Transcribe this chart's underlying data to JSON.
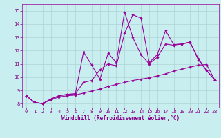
{
  "xlabel": "Windchill (Refroidissement éolien,°C)",
  "background_color": "#c8eef0",
  "grid_color": "#aed4d6",
  "line_color": "#990099",
  "xlim": [
    -0.5,
    23.5
  ],
  "ylim": [
    7.7,
    15.5
  ],
  "xticks": [
    0,
    1,
    2,
    3,
    4,
    5,
    6,
    7,
    8,
    9,
    10,
    11,
    12,
    13,
    14,
    15,
    16,
    17,
    18,
    19,
    20,
    21,
    22,
    23
  ],
  "yticks": [
    8,
    9,
    10,
    11,
    12,
    13,
    14,
    15
  ],
  "line1_y": [
    8.6,
    8.1,
    8.0,
    8.35,
    8.6,
    8.7,
    8.75,
    9.6,
    9.75,
    10.55,
    11.0,
    10.85,
    13.3,
    14.7,
    14.45,
    11.1,
    11.7,
    13.5,
    12.45,
    12.5,
    12.65,
    11.3,
    10.5,
    9.8
  ],
  "line2_y": [
    8.6,
    8.1,
    8.0,
    8.35,
    8.6,
    8.7,
    8.75,
    11.9,
    10.9,
    9.85,
    11.8,
    11.1,
    14.9,
    13.0,
    11.7,
    11.0,
    11.5,
    12.5,
    12.4,
    12.5,
    12.6,
    11.4,
    10.5,
    9.8
  ],
  "line3_y": [
    8.6,
    8.1,
    8.0,
    8.3,
    8.5,
    8.6,
    8.65,
    8.8,
    8.95,
    9.1,
    9.3,
    9.45,
    9.6,
    9.75,
    9.85,
    9.95,
    10.1,
    10.25,
    10.45,
    10.6,
    10.75,
    10.9,
    10.95,
    9.8
  ],
  "marker": "D",
  "markersize": 1.8,
  "linewidth": 0.8,
  "xlabel_fontsize": 5.5,
  "tick_fontsize": 5.0,
  "label_color": "#880088"
}
